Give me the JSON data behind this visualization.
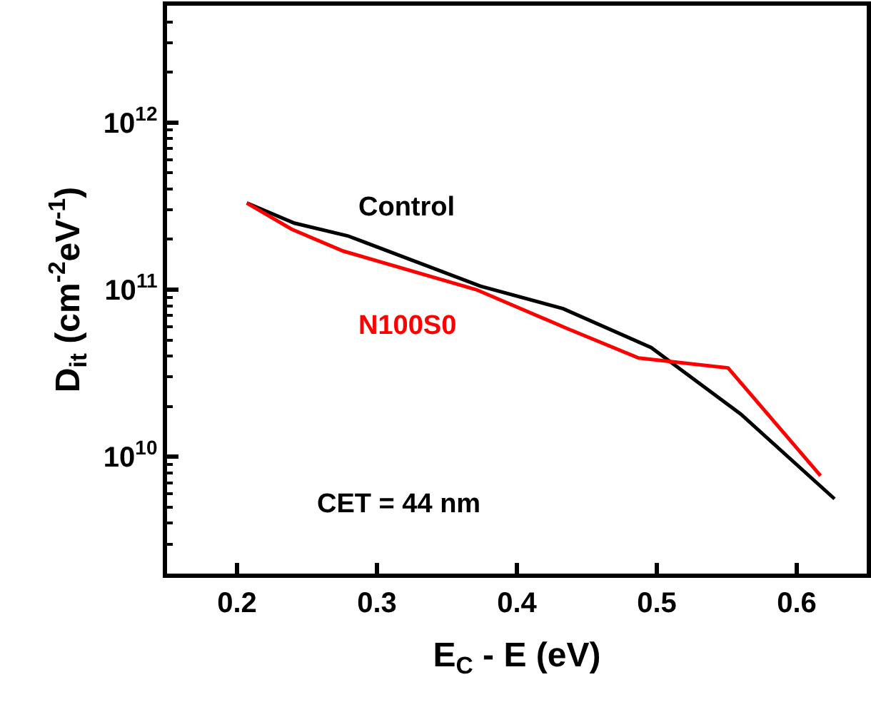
{
  "chart_data": {
    "type": "line",
    "xlabel": "E$_{C}$ - E (eV)",
    "ylabel": "D$_{it}$ (cm$^{-2}$eV$^{-1}$)",
    "log": "y",
    "grid": false,
    "legend": false,
    "marker": "none",
    "line_style": "solid",
    "xlim": [
      0.15,
      0.65
    ],
    "xticks": [
      0.2,
      0.3,
      0.4,
      0.5,
      0.6
    ],
    "ylim": [
      2000000000.0,
      5000000000000.0
    ],
    "yticks": [
      {
        "value": 10000000000.0,
        "label": "10$^{10}$"
      },
      {
        "value": 100000000000.0,
        "label": "10$^{11}$"
      },
      {
        "value": 1000000000000.0,
        "label": "10$^{12}$"
      }
    ],
    "annotations": [
      "CET = 44 nm"
    ],
    "series": [
      {
        "name": "Control",
        "color": "#000000",
        "x": [
          0.207,
          0.241,
          0.279,
          0.374,
          0.433,
          0.496,
          0.56,
          0.627
        ],
        "values": [
          330000000000.0,
          250000000000.0,
          210000000000.0,
          105000000000.0,
          77000000000.0,
          45000000000.0,
          18000000000.0,
          5600000000.0
        ]
      },
      {
        "name": "N100S0",
        "color": "#ff0000",
        "x": [
          0.207,
          0.239,
          0.276,
          0.371,
          0.435,
          0.487,
          0.551,
          0.617
        ],
        "values": [
          330000000000.0,
          230000000000.0,
          170000000000.0,
          100000000000.0,
          59000000000.0,
          39000000000.0,
          34000000000.0,
          7700000000.0
        ]
      }
    ]
  }
}
